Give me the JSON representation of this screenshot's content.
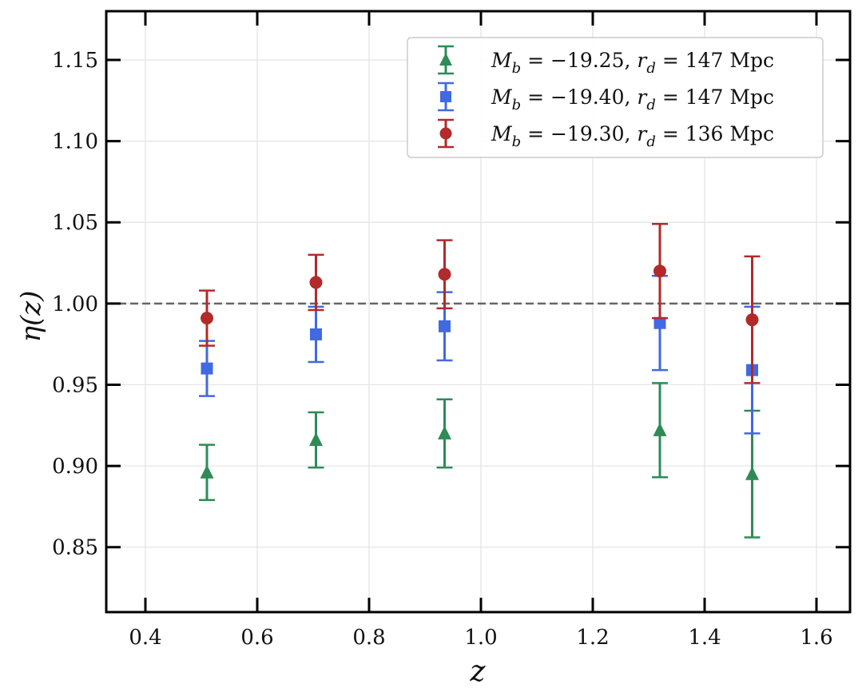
{
  "chart_data": {
    "type": "scatter",
    "xlabel": "z",
    "ylabel": "η(z)",
    "xlim": [
      0.33,
      1.66
    ],
    "ylim": [
      0.81,
      1.18
    ],
    "grid": true,
    "reference_line": {
      "y": 1.0,
      "style": "dashed",
      "color": "#666666"
    },
    "legend_position": "top-right",
    "x_ticks": [
      "0.4",
      "0.6",
      "0.8",
      "1.0",
      "1.2",
      "1.4",
      "1.6"
    ],
    "x_tick_values": [
      0.4,
      0.6,
      0.8,
      1.0,
      1.2,
      1.4,
      1.6
    ],
    "y_ticks": [
      "0.85",
      "0.90",
      "0.95",
      "1.00",
      "1.05",
      "1.10",
      "1.15"
    ],
    "y_tick_values": [
      0.85,
      0.9,
      0.95,
      1.0,
      1.05,
      1.1,
      1.15
    ],
    "series": [
      {
        "name": "M_b = −19.25, r_d = 147 Mpc",
        "label_parts": {
          "mb": "M",
          "mb_sub": "b",
          "mb_val": " = −19.25, ",
          "rd": "r",
          "rd_sub": "d",
          "rd_val": " = 147 Mpc"
        },
        "marker": "triangle",
        "color": "#2e8b57",
        "x": [
          0.51,
          0.705,
          0.935,
          1.32,
          1.485
        ],
        "y": [
          0.896,
          0.916,
          0.92,
          0.922,
          0.895
        ],
        "err": [
          0.017,
          0.017,
          0.021,
          0.029,
          0.039
        ]
      },
      {
        "name": "M_b = −19.40, r_d = 147 Mpc",
        "label_parts": {
          "mb": "M",
          "mb_sub": "b",
          "mb_val": " = −19.40, ",
          "rd": "r",
          "rd_sub": "d",
          "rd_val": " = 147 Mpc"
        },
        "marker": "square",
        "color": "#4169e1",
        "x": [
          0.51,
          0.705,
          0.935,
          1.32,
          1.485
        ],
        "y": [
          0.96,
          0.981,
          0.986,
          0.988,
          0.959
        ],
        "err": [
          0.017,
          0.017,
          0.021,
          0.029,
          0.039
        ]
      },
      {
        "name": "M_b = −19.30, r_d = 136 Mpc",
        "label_parts": {
          "mb": "M",
          "mb_sub": "b",
          "mb_val": " = −19.30, ",
          "rd": "r",
          "rd_sub": "d",
          "rd_val": " = 136 Mpc"
        },
        "marker": "circle",
        "color": "#b22a2a",
        "x": [
          0.51,
          0.705,
          0.935,
          1.32,
          1.485
        ],
        "y": [
          0.991,
          1.013,
          1.018,
          1.02,
          0.99
        ],
        "err": [
          0.017,
          0.017,
          0.021,
          0.029,
          0.039
        ]
      }
    ]
  }
}
